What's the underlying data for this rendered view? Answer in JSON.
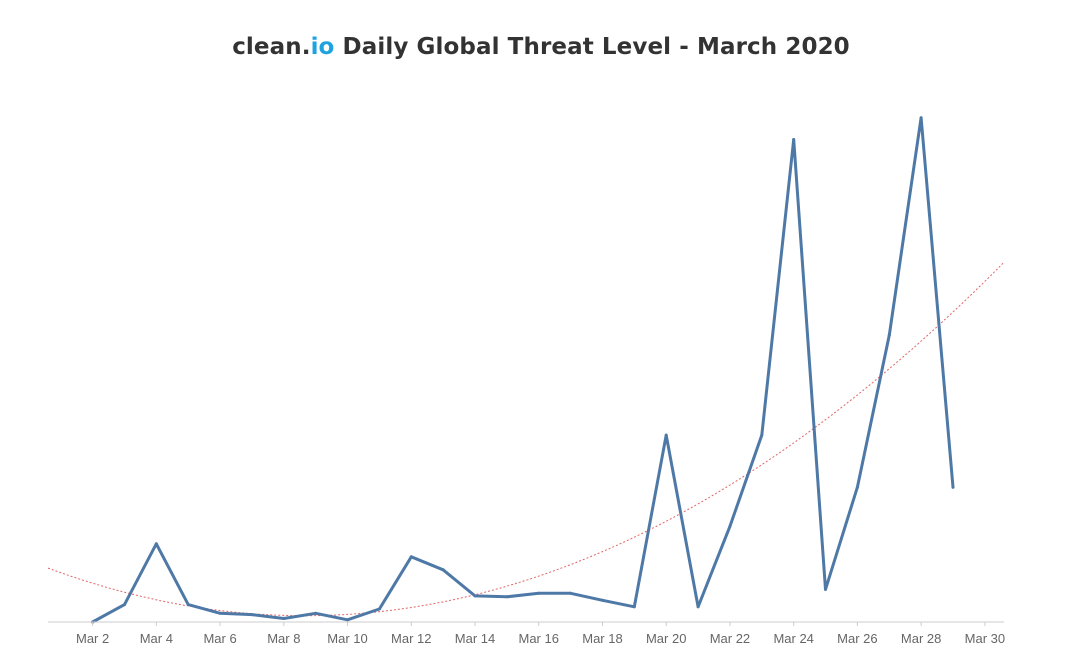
{
  "chart_data": {
    "type": "line",
    "title": {
      "brand": "clean.",
      "brand_accent": "io",
      "text": " Daily Global Threat Level - March 2020"
    },
    "x": [
      2,
      3,
      4,
      5,
      6,
      7,
      8,
      9,
      10,
      11,
      12,
      13,
      14,
      15,
      16,
      17,
      18,
      19,
      20,
      21,
      22,
      23,
      24,
      25,
      26,
      27,
      28,
      29
    ],
    "series": [
      {
        "values": [
          0.0,
          0.4,
          1.8,
          0.4,
          0.2,
          0.17,
          0.08,
          0.2,
          0.05,
          0.3,
          1.5,
          1.2,
          0.6,
          0.58,
          0.66,
          0.66,
          0.5,
          0.35,
          4.3,
          0.35,
          2.2,
          4.3,
          11.1,
          0.75,
          3.1,
          6.6,
          11.6,
          3.1
        ]
      }
    ],
    "trendline": {
      "type": "polynomial",
      "style": "dotted"
    },
    "x_ticks": [
      "Mar 2",
      "Mar 4",
      "Mar 6",
      "Mar 8",
      "Mar 10",
      "Mar 12",
      "Mar 14",
      "Mar 16",
      "Mar 18",
      "Mar 20",
      "Mar 22",
      "Mar 24",
      "Mar 26",
      "Mar 28",
      "Mar 30"
    ],
    "x_tick_values": [
      2,
      4,
      6,
      8,
      10,
      12,
      14,
      16,
      18,
      20,
      22,
      24,
      26,
      28,
      30
    ],
    "xlim": [
      0.6,
      30.6
    ],
    "ylim": [
      0,
      12.1
    ],
    "xlabel": "",
    "ylabel": "",
    "grid": false,
    "colors": {
      "line": "#4e79a7",
      "trend": "#e06666",
      "title_accent": "#1ea3e0",
      "axis": "#cccccc",
      "text": "#333333"
    }
  }
}
